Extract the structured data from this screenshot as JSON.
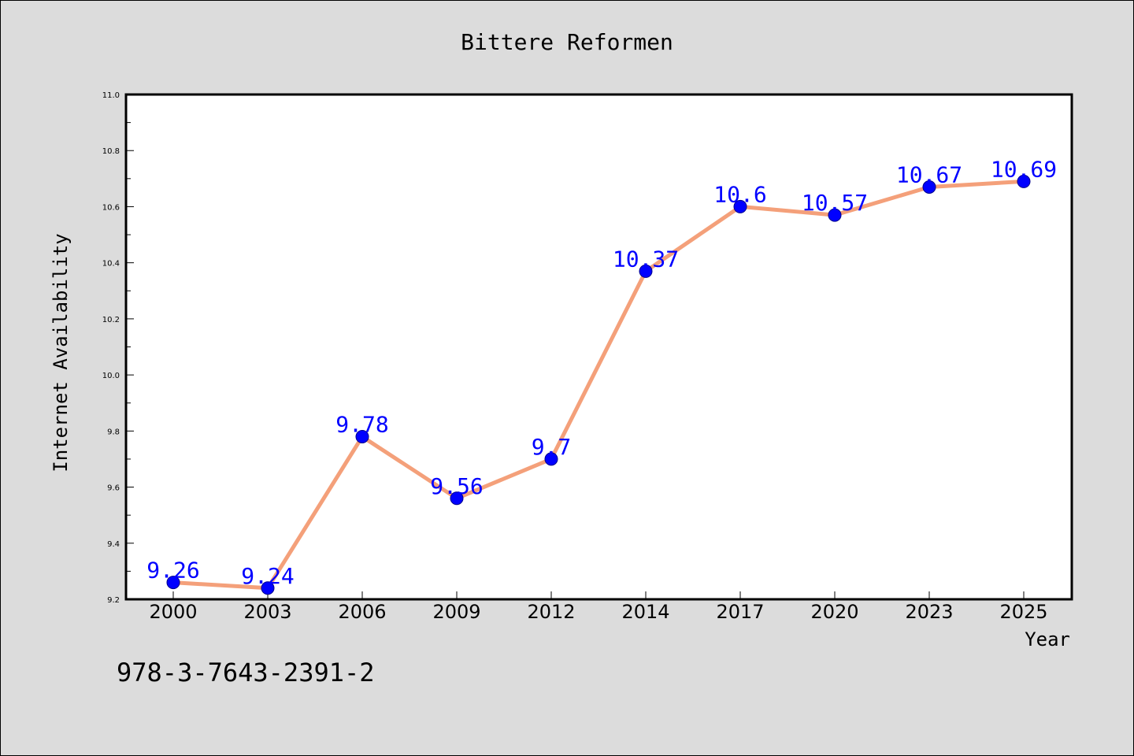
{
  "colors": {
    "background": "#dcdcdc",
    "plot_background": "#ffffff",
    "line": "#f4a07a",
    "marker": "#0000ff",
    "data_label": "#0000ff",
    "axis": "#000000"
  },
  "footer": {
    "isbn": "978-3-7643-2391-2"
  },
  "chart_data": {
    "type": "line",
    "title": "Bittere Reformen",
    "xlabel": "Year",
    "ylabel": "Internet Availability",
    "categories": [
      "2000",
      "2003",
      "2006",
      "2009",
      "2012",
      "2014",
      "2017",
      "2020",
      "2023",
      "2025"
    ],
    "series": [
      {
        "values": [
          9.26,
          9.24,
          9.78,
          9.56,
          9.7,
          10.37,
          10.6,
          10.57,
          10.67,
          10.69
        ],
        "labels": [
          "9.26",
          "9.24",
          "9.78",
          "9.56",
          "9.7",
          "10.37",
          "10.6",
          "10.57",
          "10.67",
          "10.69"
        ]
      }
    ],
    "ylim": [
      9.2,
      11.0
    ],
    "yticks": [
      9.2,
      9.4,
      9.6,
      9.8,
      10.0,
      10.2,
      10.4,
      10.6,
      10.8,
      11.0
    ],
    "ytick_labels": [
      "9.2",
      "9.4",
      "9.6",
      "9.8",
      "10.0",
      "10.2",
      "10.4",
      "10.6",
      "10.8",
      "11.0"
    ],
    "grid": false,
    "legend": "none",
    "marker": "circle"
  }
}
